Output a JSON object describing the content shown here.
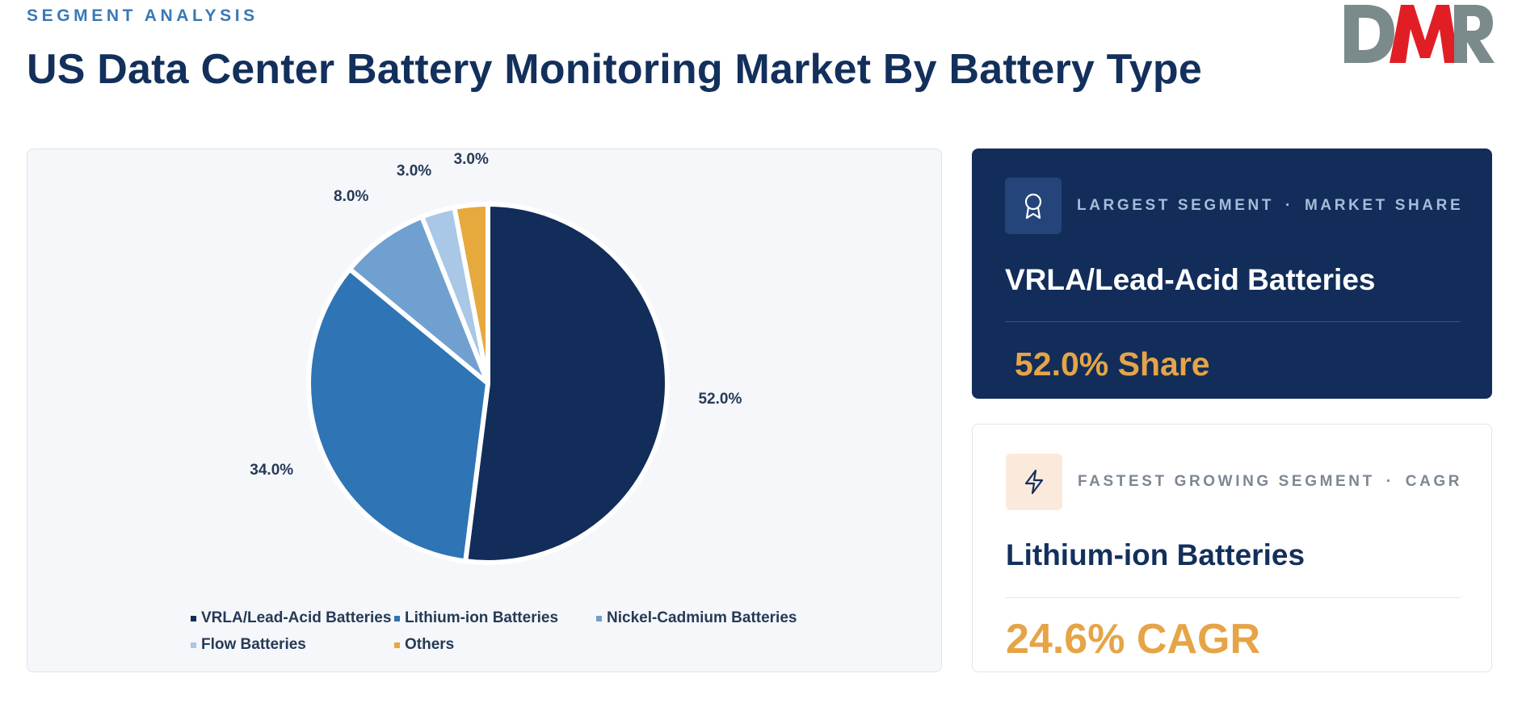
{
  "header": {
    "eyebrow": "SEGMENT ANALYSIS",
    "title": "US Data Center Battery Monitoring Market By Battery Type"
  },
  "logo": {
    "text": "DMR",
    "colors": [
      "#7b8a8b",
      "#e21e25",
      "#7b8a8b"
    ]
  },
  "chart_data": {
    "type": "pie",
    "title": "",
    "slices": [
      {
        "label": "VRLA/Lead-Acid Batteries",
        "value": 52.0,
        "display": "52.0%",
        "color": "#122d5a"
      },
      {
        "label": "Lithium-ion Batteries",
        "value": 34.0,
        "display": "34.0%",
        "color": "#2f74b5"
      },
      {
        "label": "Nickel-Cadmium Batteries",
        "value": 8.0,
        "display": "8.0%",
        "color": "#6fa0d0"
      },
      {
        "label": "Flow Batteries",
        "value": 3.0,
        "display": "3.0%",
        "color": "#a9c7e6"
      },
      {
        "label": "Others",
        "value": 3.0,
        "display": "3.0%",
        "color": "#e6a93d"
      }
    ],
    "legend_position": "bottom",
    "start_angle": "12 o'clock",
    "direction": "clockwise"
  },
  "cards": {
    "largest": {
      "label_left": "LARGEST SEGMENT",
      "separator": "·",
      "label_right": "MARKET SHARE",
      "name": "VRLA/Lead-Acid Batteries",
      "value": "52.0% Share",
      "icon": "award-icon"
    },
    "fastest": {
      "label_left": "FASTEST GROWING SEGMENT",
      "separator": "·",
      "label_right": "CAGR",
      "name": "Lithium-ion Batteries",
      "value": "24.6% CAGR",
      "icon": "lightning-icon"
    }
  }
}
